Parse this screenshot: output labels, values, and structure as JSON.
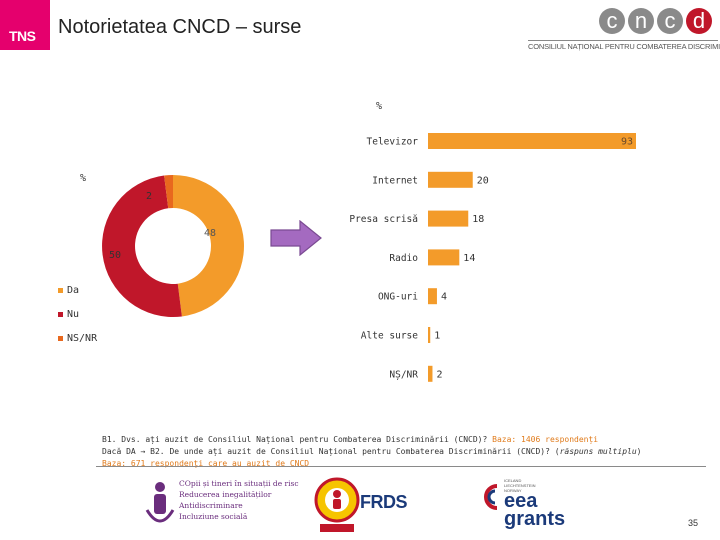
{
  "header": {
    "logo_text": "TNS",
    "title": "Notorietatea CNCD – surse",
    "cncd_letters": [
      "c",
      "n",
      "c",
      "d"
    ],
    "cncd_subtitle": "CONSILIUL NAȚIONAL PENTRU COMBATEREA DISCRIMINĂRII"
  },
  "colors": {
    "orange": "#f39b2a",
    "red": "#c0172a",
    "magenta": "#e5006d",
    "grey": "#8a8a8a"
  },
  "chart_data": [
    {
      "type": "pie",
      "title": "",
      "unit_label": "%",
      "categories": [
        "Da",
        "Nu",
        "NS/NR"
      ],
      "values": [
        48,
        50,
        2
      ],
      "colors": [
        "#f39b2a",
        "#c0172a",
        "#e8681e"
      ],
      "legend_position": "left",
      "style": "donut"
    },
    {
      "type": "bar",
      "orientation": "horizontal",
      "title": "",
      "unit_label": "%",
      "categories": [
        "Televizor",
        "Internet",
        "Presa scrisă",
        "Radio",
        "ONG-uri",
        "Alte surse",
        "NȘ/NR"
      ],
      "values": [
        93,
        20,
        18,
        14,
        4,
        1,
        2
      ],
      "xlim": [
        0,
        93
      ],
      "grid": false
    }
  ],
  "question": {
    "line1_text": "B1. Dvs. ați auzit de Consiliul Național pentru Combaterea Discriminării (CNCD)? ",
    "line1_base": "Baza: 1406 respondenți",
    "line2_prefix": "Dacă DA ",
    "line2_arrow": "→",
    "line2_text": " B2. De unde ați auzit de Consiliul Național pentru Combaterea Discriminării (CNCD)? (",
    "line2_italic": "răspuns multiplu",
    "line2_close": ")",
    "line3_base": "Baza: 671 respondenți care au auzit de CNCD"
  },
  "sponsors": {
    "s1_lines": [
      "COpii și tineri în situații de risc",
      "Reducerea inegalităților",
      "Antidiscriminare",
      "Incluziune socială"
    ],
    "s2_text": "FRDS",
    "s3_small": [
      "ICELAND",
      "LIECHTENSTEIN",
      "NORWAY"
    ],
    "s3_line1": "eea",
    "s3_line2": "grants"
  },
  "page_number": "35"
}
